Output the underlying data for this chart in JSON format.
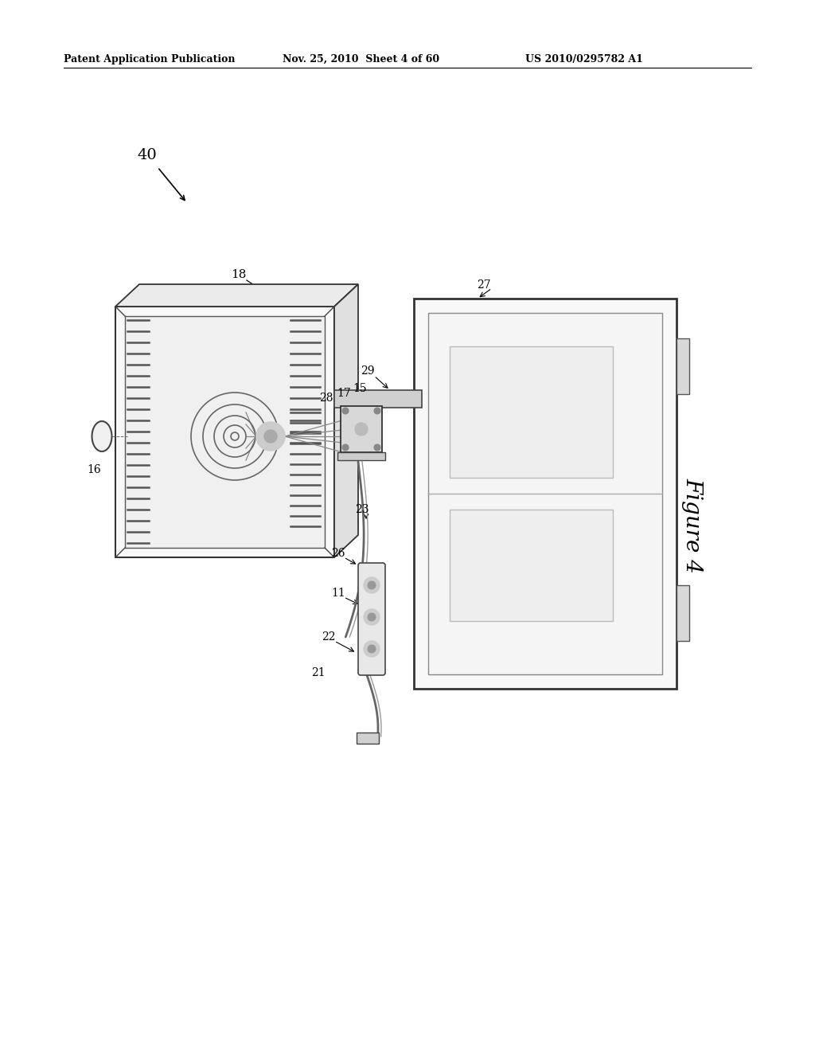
{
  "background_color": "#ffffff",
  "header_left": "Patent Application Publication",
  "header_center": "Nov. 25, 2010  Sheet 4 of 60",
  "header_right": "US 2010/0295782 A1",
  "figure_label": "Figure 4"
}
